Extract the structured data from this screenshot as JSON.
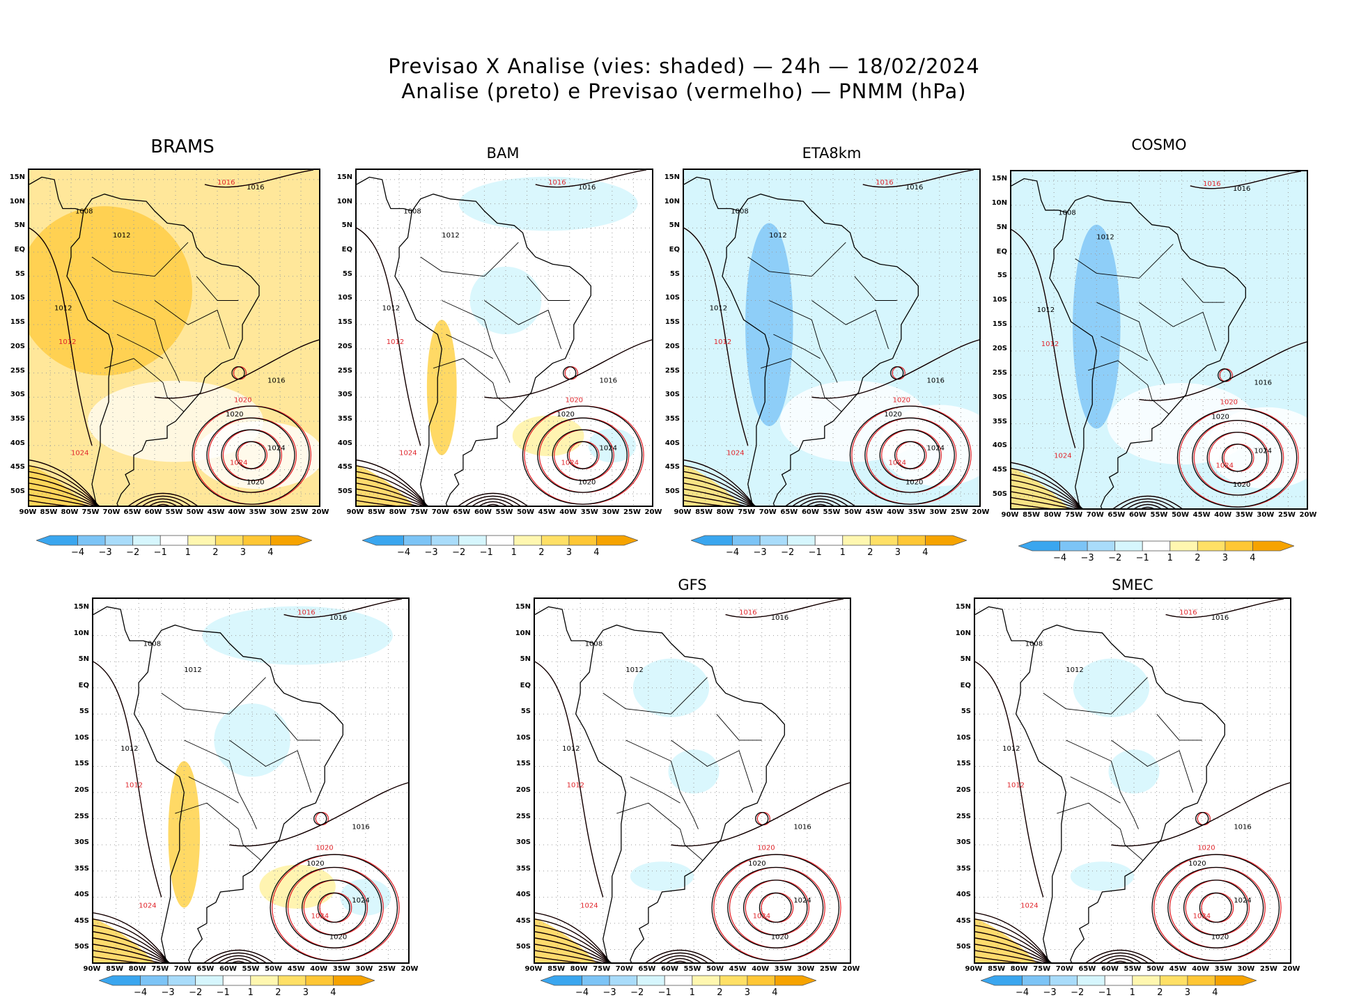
{
  "title": {
    "line1": "Previsao X Analise (vies: shaded) — 24h — 18/02/2024",
    "line2": "Analise (preto) e Previsao (vermelho) — PNMM (hPa)"
  },
  "lat_labels": [
    "15N",
    "10N",
    "5N",
    "EQ",
    "5S",
    "10S",
    "15S",
    "20S",
    "25S",
    "30S",
    "35S",
    "40S",
    "45S",
    "50S"
  ],
  "lon_labels": [
    "90W",
    "85W",
    "80W",
    "75W",
    "70W",
    "65W",
    "60W",
    "55W",
    "50W",
    "45W",
    "40W",
    "35W",
    "30W",
    "25W",
    "20W"
  ],
  "colorbar": {
    "labels": [
      "−4",
      "−3",
      "−2",
      "−1",
      "1",
      "2",
      "3",
      "4"
    ],
    "colors": [
      "#3aa6ef",
      "#7cc4f6",
      "#a9dcfa",
      "#d6f6fd",
      "#ffffff",
      "#fff7b0",
      "#ffe066",
      "#ffc735",
      "#f6a300"
    ]
  },
  "colors": {
    "analysis": "#000000",
    "forecast": "#e0262c",
    "warm": "#ffd24a",
    "cool": "#b9ecfa",
    "grid": "#9a9a9a"
  },
  "contour_labels": [
    "1008",
    "1012",
    "1016",
    "1020",
    "1024"
  ],
  "panels": [
    {
      "name": "BRAMS",
      "bias": "warm"
    },
    {
      "name": "BAM",
      "bias": "mixed"
    },
    {
      "name": "ETA8km",
      "bias": "cool"
    },
    {
      "name": "COSMO",
      "bias": "cool"
    },
    {
      "name": "",
      "bias": "mixed"
    },
    {
      "name": "GFS",
      "bias": "light"
    },
    {
      "name": "SMEC",
      "bias": "light"
    }
  ]
}
